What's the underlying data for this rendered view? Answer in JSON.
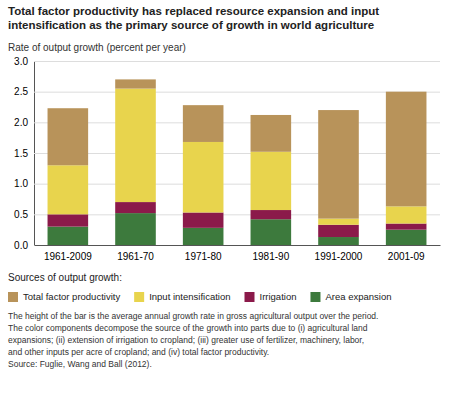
{
  "chart_data": {
    "type": "bar",
    "stacked": true,
    "title": "Total factor productivity has replaced resource expansion and input intensification as the primary source of growth in world agriculture",
    "y_label": "Rate of output growth (percent per year)",
    "categories": [
      "1961-2009",
      "1961-70",
      "1971-80",
      "1981-90",
      "1991-2000",
      "2001-09"
    ],
    "series": [
      {
        "name": "Area expansion",
        "color": "#3d7a3d",
        "values": [
          0.3,
          0.52,
          0.28,
          0.42,
          0.13,
          0.25
        ]
      },
      {
        "name": "Irrigation",
        "color": "#8b1a4a",
        "values": [
          0.2,
          0.18,
          0.25,
          0.15,
          0.2,
          0.1
        ]
      },
      {
        "name": "Input intensification",
        "color": "#e8d44d",
        "values": [
          0.8,
          1.85,
          1.15,
          0.95,
          0.1,
          0.28
        ]
      },
      {
        "name": "Total factor productivity",
        "color": "#b8935a",
        "values": [
          0.93,
          0.15,
          0.6,
          0.6,
          1.77,
          1.87
        ]
      }
    ],
    "ylim": [
      0.0,
      3.0
    ],
    "yticks": [
      {
        "value": 0.0,
        "label": "0.0"
      },
      0.5,
      {
        "value": 1.0,
        "label": "1.0"
      },
      1.5,
      {
        "value": 2.0,
        "label": "2.0"
      },
      2.5,
      {
        "value": 3.0,
        "label": "3.0"
      }
    ],
    "grid": true,
    "legend_title": "Sources of output growth:",
    "annotations": [
      "The height of the bar is the average annual growth rate in gross agricultural output over the period.",
      "The color components decompose the source of the growth into parts due to (i) agricultural land",
      "expansions; (ii) extension of irrigation to cropland; (iii) greater use of fertilizer, machinery, labor,",
      "and other inputs per acre of cropland; and (iv) total factor productivity.",
      "Source: Fuglie, Wang and Ball (2012)."
    ]
  }
}
